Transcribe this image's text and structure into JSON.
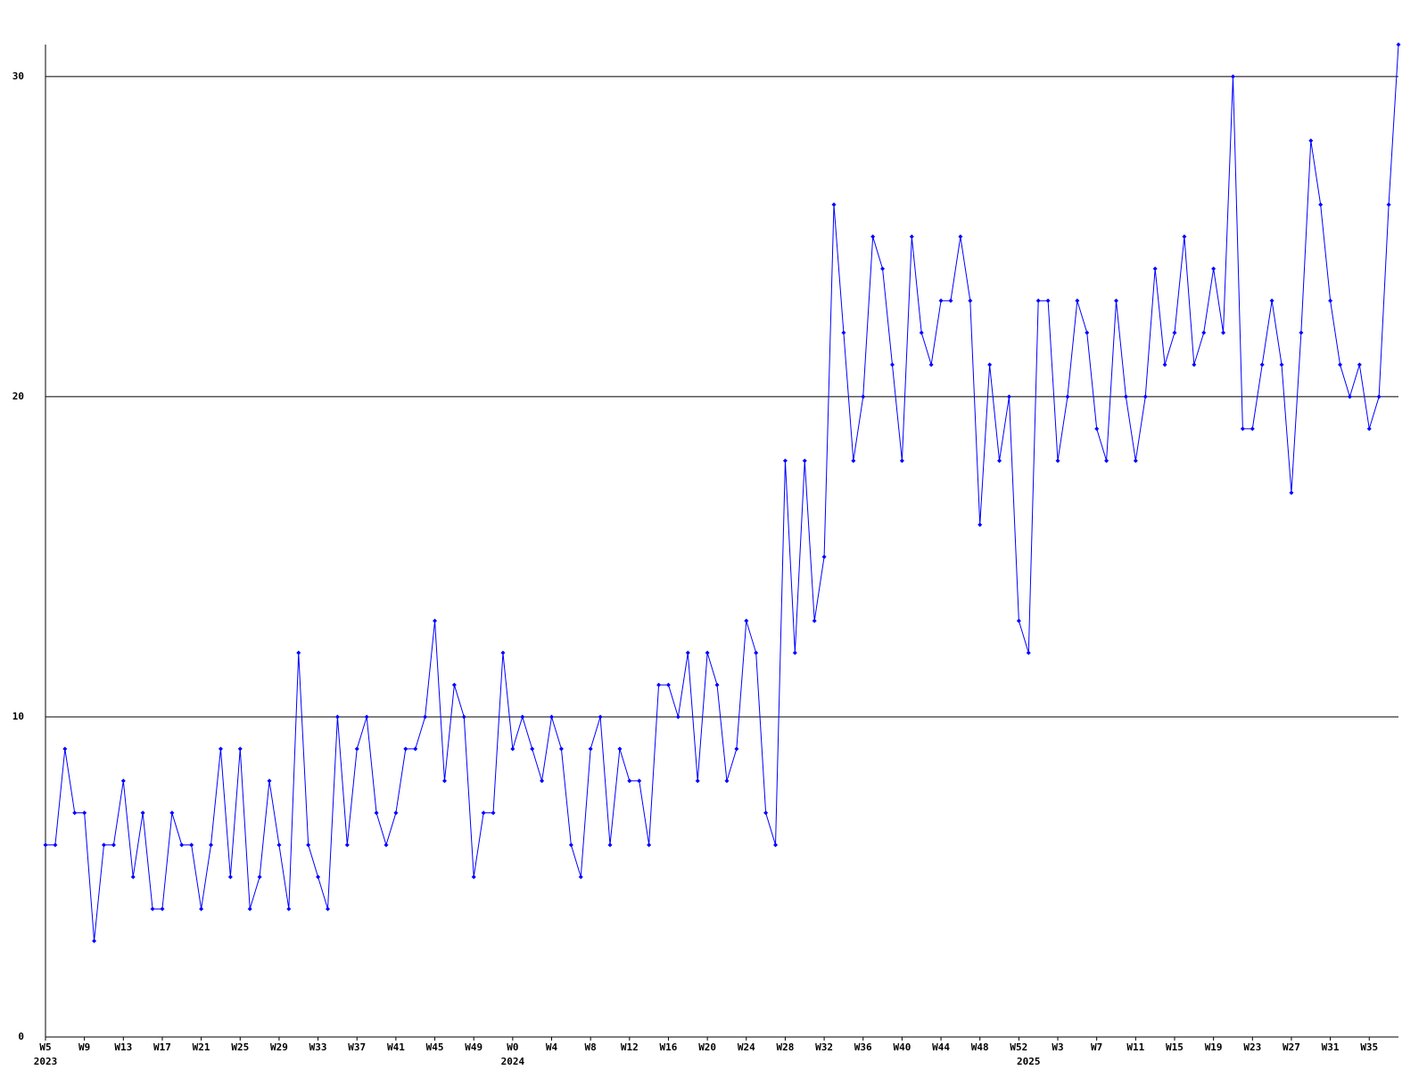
{
  "chart_data": {
    "type": "line",
    "categories": [
      "W5",
      null,
      null,
      null,
      "W9",
      null,
      null,
      null,
      "W13",
      null,
      null,
      null,
      "W17",
      null,
      null,
      null,
      "W21",
      null,
      null,
      null,
      "W25",
      null,
      null,
      null,
      "W29",
      null,
      null,
      null,
      "W33",
      null,
      null,
      null,
      "W37",
      null,
      null,
      null,
      "W41",
      null,
      null,
      null,
      "W45",
      null,
      null,
      null,
      "W49",
      null,
      null,
      null,
      "W0",
      null,
      null,
      null,
      "W4",
      null,
      null,
      null,
      "W8",
      null,
      null,
      null,
      "W12",
      null,
      null,
      null,
      "W16",
      null,
      null,
      null,
      "W20",
      null,
      null,
      null,
      "W24",
      null,
      null,
      null,
      "W28",
      null,
      null,
      null,
      "W32",
      null,
      null,
      null,
      "W36",
      null,
      null,
      null,
      "W40",
      null,
      null,
      null,
      "W44",
      null,
      null,
      null,
      "W48",
      null,
      null,
      null,
      "W52",
      null,
      null,
      null,
      "W3",
      null,
      null,
      null,
      "W7",
      null,
      null,
      null,
      "W11",
      null,
      null,
      null,
      "W15",
      null,
      null,
      null,
      "W19",
      null,
      null,
      null,
      "W23",
      null,
      null,
      null,
      "W27",
      null,
      null,
      null,
      "W31",
      null,
      null,
      null,
      "W35",
      null,
      null,
      null
    ],
    "category_years": [
      "2023",
      null,
      null,
      null,
      null,
      null,
      null,
      null,
      null,
      null,
      null,
      null,
      null,
      null,
      null,
      null,
      null,
      null,
      null,
      null,
      null,
      null,
      null,
      null,
      null,
      null,
      null,
      null,
      null,
      null,
      null,
      null,
      null,
      null,
      null,
      null,
      null,
      null,
      null,
      null,
      null,
      null,
      null,
      null,
      null,
      null,
      null,
      null,
      "2024",
      null,
      null,
      null,
      null,
      null,
      null,
      null,
      null,
      null,
      null,
      null,
      null,
      null,
      null,
      null,
      null,
      null,
      null,
      null,
      null,
      null,
      null,
      null,
      null,
      null,
      null,
      null,
      null,
      null,
      null,
      null,
      null,
      null,
      null,
      null,
      null,
      null,
      null,
      null,
      null,
      null,
      null,
      null,
      null,
      null,
      null,
      null,
      null,
      null,
      null,
      null,
      null,
      "2025",
      null,
      null,
      null,
      null,
      null,
      null,
      null,
      null,
      null,
      null,
      null,
      null,
      null,
      null,
      null,
      null,
      null,
      null,
      null,
      null,
      null,
      null,
      null,
      null,
      null,
      null,
      null,
      null,
      null,
      null,
      null,
      null,
      null,
      null,
      null,
      null,
      null,
      null
    ],
    "series": [
      {
        "color": "#0000ff",
        "values": [
          6,
          6,
          9,
          7,
          7,
          3,
          6,
          6,
          8,
          5,
          7,
          4,
          4,
          7,
          6,
          6,
          4,
          6,
          9,
          5,
          9,
          4,
          5,
          8,
          6,
          4,
          12,
          6,
          5,
          4,
          10,
          6,
          9,
          10,
          7,
          6,
          7,
          9,
          9,
          10,
          13,
          8,
          11,
          10,
          5,
          7,
          7,
          12,
          9,
          10,
          9,
          8,
          10,
          9,
          6,
          5,
          9,
          10,
          6,
          9,
          8,
          8,
          6,
          11,
          11,
          10,
          12,
          8,
          12,
          11,
          8,
          9,
          13,
          12,
          7,
          6,
          18,
          12,
          18,
          13,
          15,
          26,
          22,
          18,
          20,
          25,
          24,
          21,
          18,
          25,
          22,
          21,
          23,
          23,
          25,
          23,
          16,
          21,
          18,
          20,
          13,
          12,
          23,
          23,
          18,
          20,
          23,
          22,
          19,
          18,
          23,
          20,
          18,
          20,
          24,
          21,
          22,
          25,
          21,
          22,
          24,
          22,
          30,
          19,
          19,
          21,
          23,
          21,
          17,
          22,
          28,
          26,
          23,
          21,
          20,
          21,
          19,
          20,
          26,
          31
        ]
      }
    ],
    "ylim": [
      0,
      31
    ],
    "yticks": [
      0,
      10,
      20,
      30
    ],
    "grid": true
  }
}
